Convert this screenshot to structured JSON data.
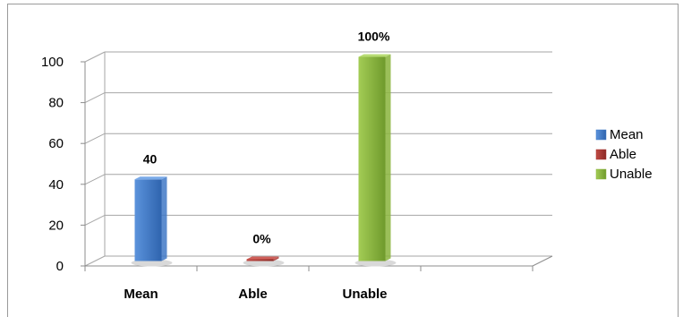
{
  "chart_data": {
    "type": "bar",
    "style": "3d-column",
    "categories": [
      "Mean",
      "Able",
      "Unable"
    ],
    "series": [
      {
        "name": "Mean",
        "values": [
          40,
          null,
          null
        ],
        "color": "#3f78c6"
      },
      {
        "name": "Able",
        "values": [
          null,
          0,
          null
        ],
        "color": "#a83632"
      },
      {
        "name": "Unable",
        "values": [
          null,
          null,
          100
        ],
        "color": "#8ab43c"
      }
    ],
    "data_labels": [
      "40",
      "0%",
      "100%"
    ],
    "y_ticks": [
      "0",
      "20",
      "40",
      "60",
      "80",
      "100"
    ],
    "ylim": [
      0,
      100
    ],
    "grid": true,
    "legend_position": "right",
    "title": "",
    "xlabel": "",
    "ylabel": ""
  }
}
